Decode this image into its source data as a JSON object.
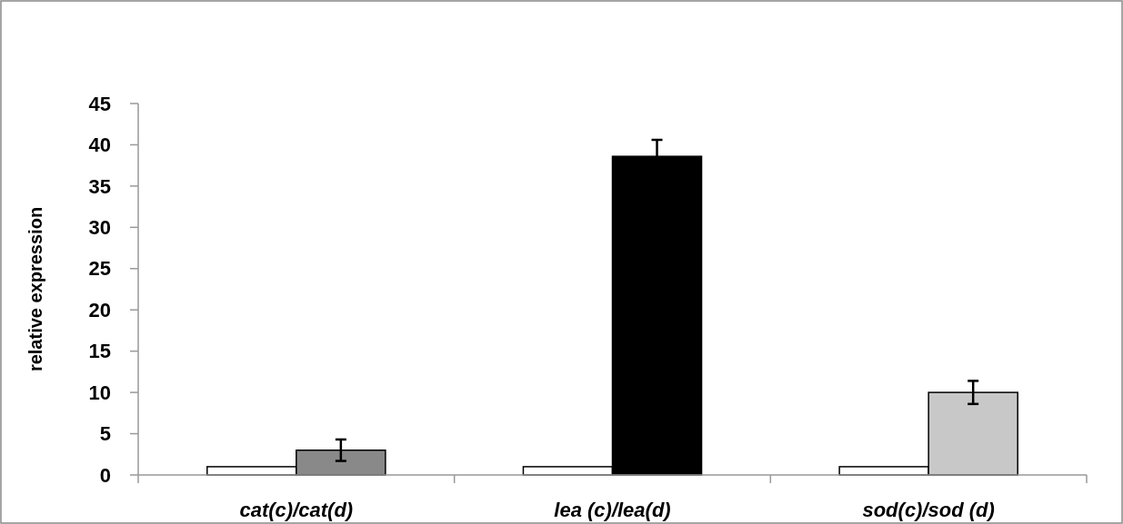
{
  "chart_data": {
    "type": "bar",
    "ylabel": "relative expression",
    "categories": [
      "cat(c)/cat(d)",
      "lea (c)/lea(d)",
      "sod(c)/sod (d)"
    ],
    "series": [
      {
        "color": "#ffffff",
        "values": [
          1,
          1,
          1
        ]
      },
      {
        "colors": [
          "#898989",
          "#000000",
          "#c8c8c8"
        ],
        "values": [
          3.0,
          38.6,
          10.0
        ],
        "errors": [
          1.3,
          2.0,
          1.4
        ]
      }
    ],
    "ylim": [
      0,
      45
    ],
    "yticks": [
      0,
      5,
      10,
      15,
      20,
      25,
      30,
      35,
      40,
      45
    ],
    "grid": false
  }
}
